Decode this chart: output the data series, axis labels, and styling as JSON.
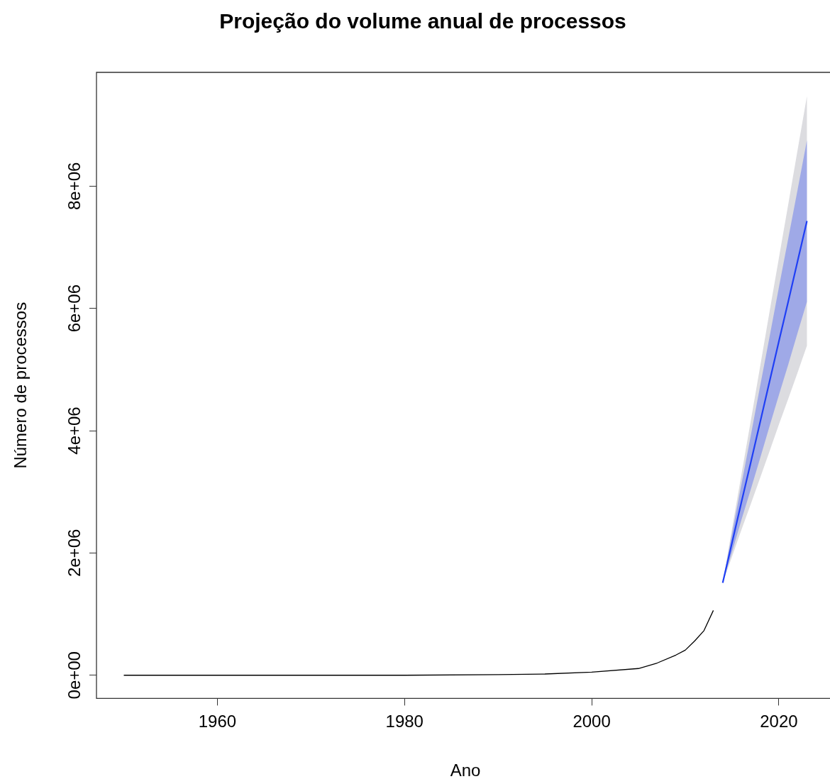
{
  "chart_data": {
    "type": "line",
    "title": "Projeção do volume anual de processos",
    "xlabel": "Ano",
    "ylabel": "Número de processos",
    "xlim": [
      1947.08,
      2025.92
    ],
    "xticks": [
      1960,
      1980,
      2000,
      2020
    ],
    "ylim": [
      -379000,
      9860000
    ],
    "yticks": [
      {
        "value": 0,
        "label": "0e+00"
      },
      {
        "value": 2000000,
        "label": "2e+06"
      },
      {
        "value": 4000000,
        "label": "4e+06"
      },
      {
        "value": 6000000,
        "label": "6e+06"
      },
      {
        "value": 8000000,
        "label": "8e+06"
      }
    ],
    "grid": false,
    "marker": "none",
    "line_style": "solid",
    "series": [
      {
        "color": "#000000",
        "x": [
          1950,
          1960,
          1970,
          1980,
          1990,
          1995,
          2000,
          2005,
          2007,
          2009,
          2010,
          2011,
          2012,
          2013
        ],
        "values": [
          0,
          0,
          0,
          0,
          10000,
          20000,
          50000,
          110000,
          200000,
          330000,
          410000,
          560000,
          730000,
          1060000
        ]
      },
      {
        "color": "#dcdce0",
        "x": [
          2014,
          2015,
          2016,
          2017,
          2018,
          2019,
          2020,
          2021,
          2022,
          2023
        ],
        "values": [
          null,
          null,
          null,
          null,
          null,
          null,
          null,
          null,
          null,
          null
        ],
        "lower": [
          1510000,
          1940000,
          2380000,
          2800000,
          3230000,
          3660000,
          4100000,
          4520000,
          4950000,
          5390000
        ],
        "upper": [
          1510000,
          2400000,
          3280000,
          4160000,
          5050000,
          5940000,
          6820000,
          7700000,
          8590000,
          9470000
        ]
      },
      {
        "color": "#1f3ff5",
        "x": [
          2014,
          2015,
          2016,
          2017,
          2018,
          2019,
          2020,
          2021,
          2022,
          2023
        ],
        "values": [
          1510000,
          2170000,
          2830000,
          3480000,
          4140000,
          4800000,
          5460000,
          6110000,
          6770000,
          7430000
        ],
        "lower": [
          1510000,
          2020000,
          2540000,
          3040000,
          3550000,
          4070000,
          4580000,
          5080000,
          5600000,
          6110000
        ],
        "upper": [
          1510000,
          2320000,
          3120000,
          3920000,
          4730000,
          5530000,
          6340000,
          7140000,
          7940000,
          8750000
        ]
      }
    ]
  }
}
